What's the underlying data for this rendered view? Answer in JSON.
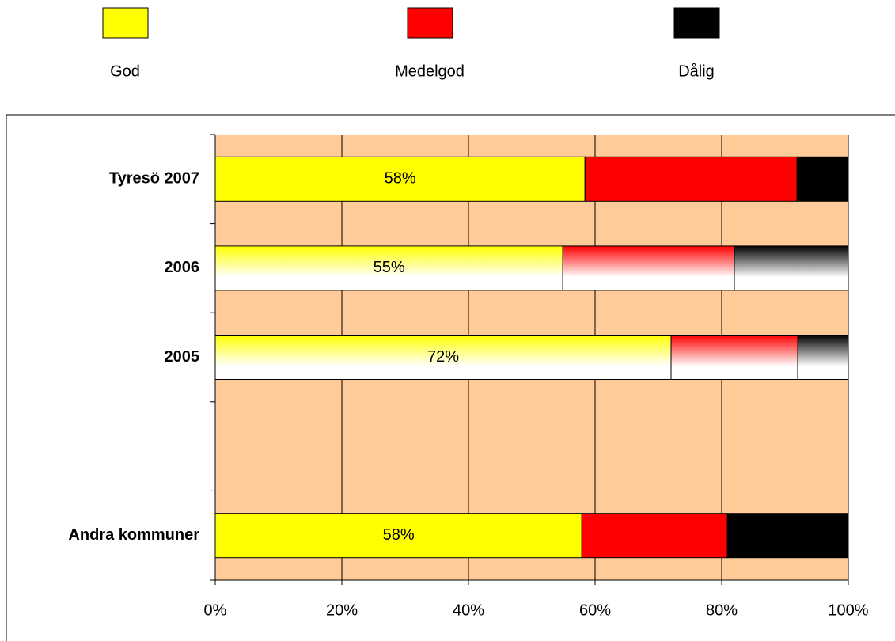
{
  "chart_data": {
    "type": "stacked_bar_horizontal",
    "categories": [
      "Tyresö 2007",
      "2006",
      "2005",
      null,
      "Andra kommuner"
    ],
    "series": [
      {
        "name": "God",
        "color": "#ffff00",
        "values": [
          58.4,
          54.9,
          72,
          null,
          57.9
        ],
        "value_labels": [
          "58%",
          "55%",
          "72%",
          null,
          "58%"
        ]
      },
      {
        "name": "Medelgod",
        "color": "#ff0000",
        "values": [
          33.5,
          27.1,
          20,
          null,
          23
        ]
      },
      {
        "name": "Dålig",
        "color": "#000000",
        "values": [
          8.1,
          18,
          8,
          null,
          19.1
        ]
      }
    ],
    "gradient": [
      false,
      true,
      true,
      false,
      false
    ],
    "xlim": [
      0,
      100
    ],
    "xticks": [
      {
        "value": 0,
        "label": "0%"
      },
      {
        "value": 20,
        "label": "20%"
      },
      {
        "value": 40,
        "label": "40%"
      },
      {
        "value": 60,
        "label": "60%"
      },
      {
        "value": 80,
        "label": "80%"
      },
      {
        "value": 100,
        "label": "100%"
      }
    ],
    "grid": true,
    "plot_background": "#ffcc99",
    "legend": "top"
  }
}
